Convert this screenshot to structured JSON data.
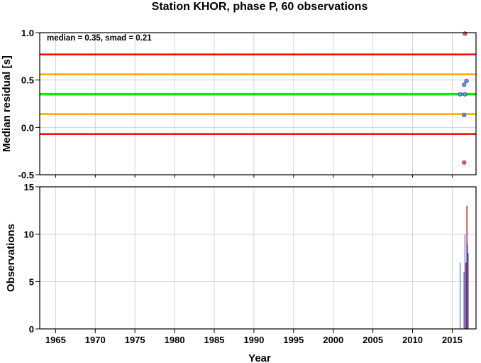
{
  "title": "Station KHOR, phase P, 60 observations",
  "chart_data": [
    {
      "type": "scatter",
      "panel": "top",
      "ylabel": "Median residual [s]",
      "xlim": [
        1963,
        2018
      ],
      "ylim": [
        -0.5,
        1.0
      ],
      "yticks": [
        "1.0",
        "0.5",
        "0.0",
        "-0.5"
      ],
      "yticks_values": [
        1.0,
        0.5,
        0.0,
        -0.5
      ],
      "annotation": "median = 0.35, smad = 0.21",
      "hlines": [
        {
          "y": 0.35,
          "color": "#00ee00"
        },
        {
          "y": 0.56,
          "color": "#ffa500"
        },
        {
          "y": 0.14,
          "color": "#ffa500"
        },
        {
          "y": 0.77,
          "color": "#ff0000"
        },
        {
          "y": -0.07,
          "color": "#ff0000"
        }
      ],
      "points": [
        {
          "x": 2016.0,
          "y": 0.35,
          "color": "#5599ff"
        },
        {
          "x": 2016.5,
          "y": 0.45,
          "color": "#5599ff"
        },
        {
          "x": 2016.8,
          "y": 0.49,
          "color": "#5599ff"
        },
        {
          "x": 2016.6,
          "y": 0.35,
          "color": "#5599ff"
        },
        {
          "x": 2016.5,
          "y": 0.13,
          "color": "#5599ff"
        },
        {
          "x": 2016.6,
          "y": 0.99,
          "color": "#ff5555"
        },
        {
          "x": 2016.5,
          "y": -0.37,
          "color": "#ff5555"
        }
      ]
    },
    {
      "type": "bar",
      "panel": "bottom",
      "xlabel": "Year",
      "ylabel": "Observations",
      "xlim": [
        1963,
        2018
      ],
      "ylim": [
        0,
        15
      ],
      "xticks": [
        "1965",
        "1970",
        "1975",
        "1980",
        "1985",
        "1990",
        "1995",
        "2000",
        "2005",
        "2010",
        "2015"
      ],
      "xticks_values": [
        1965,
        1970,
        1975,
        1980,
        1985,
        1990,
        1995,
        2000,
        2005,
        2010,
        2015
      ],
      "yticks": [
        "15",
        "10",
        "5",
        "0"
      ],
      "yticks_values": [
        15,
        10,
        5,
        0
      ],
      "bars": [
        {
          "x": 2016.0,
          "value": 7,
          "color": "#5599ff"
        },
        {
          "x": 2016.5,
          "value": 6,
          "color": "#3366cc"
        },
        {
          "x": 2016.6,
          "value": 10,
          "color": "#5599ff"
        },
        {
          "x": 2016.75,
          "value": 7,
          "color": "#cc0000"
        },
        {
          "x": 2016.85,
          "value": 13,
          "color": "#dd2222"
        },
        {
          "x": 2016.9,
          "value": 9,
          "color": "#5533aa"
        },
        {
          "x": 2017.0,
          "value": 8,
          "color": "#3366cc"
        }
      ]
    }
  ]
}
